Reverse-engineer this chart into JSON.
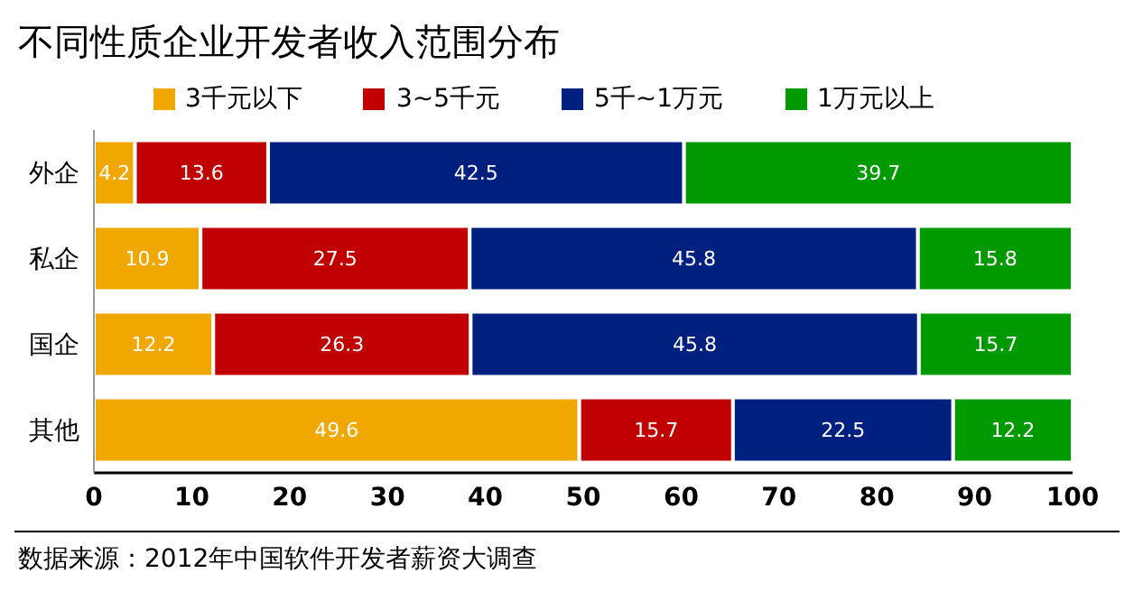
{
  "chart_data": {
    "type": "bar",
    "orientation": "horizontal",
    "stacked": true,
    "title": "不同性质企业开发者收入范围分布",
    "categories": [
      "外企",
      "私企",
      "国企",
      "其他"
    ],
    "series": [
      {
        "name": "3千元以下",
        "color": "#f0a800",
        "values": [
          4.2,
          10.9,
          12.2,
          49.6
        ]
      },
      {
        "name": "3~5千元",
        "color": "#c00000",
        "values": [
          13.6,
          27.5,
          26.3,
          15.7
        ]
      },
      {
        "name": "5千~1万元",
        "color": "#002080",
        "values": [
          42.5,
          45.8,
          45.8,
          22.5
        ]
      },
      {
        "name": "1万元以上",
        "color": "#009900",
        "values": [
          39.7,
          15.8,
          15.7,
          12.2
        ]
      }
    ],
    "xlim": [
      0,
      100
    ],
    "xticks": [
      0,
      10,
      20,
      30,
      40,
      50,
      60,
      70,
      80,
      90,
      100
    ],
    "data_labels": true,
    "legend": "top",
    "grid": false,
    "annotations": [
      "数据来源：2012年中国软件开发者薪资大调查"
    ]
  }
}
